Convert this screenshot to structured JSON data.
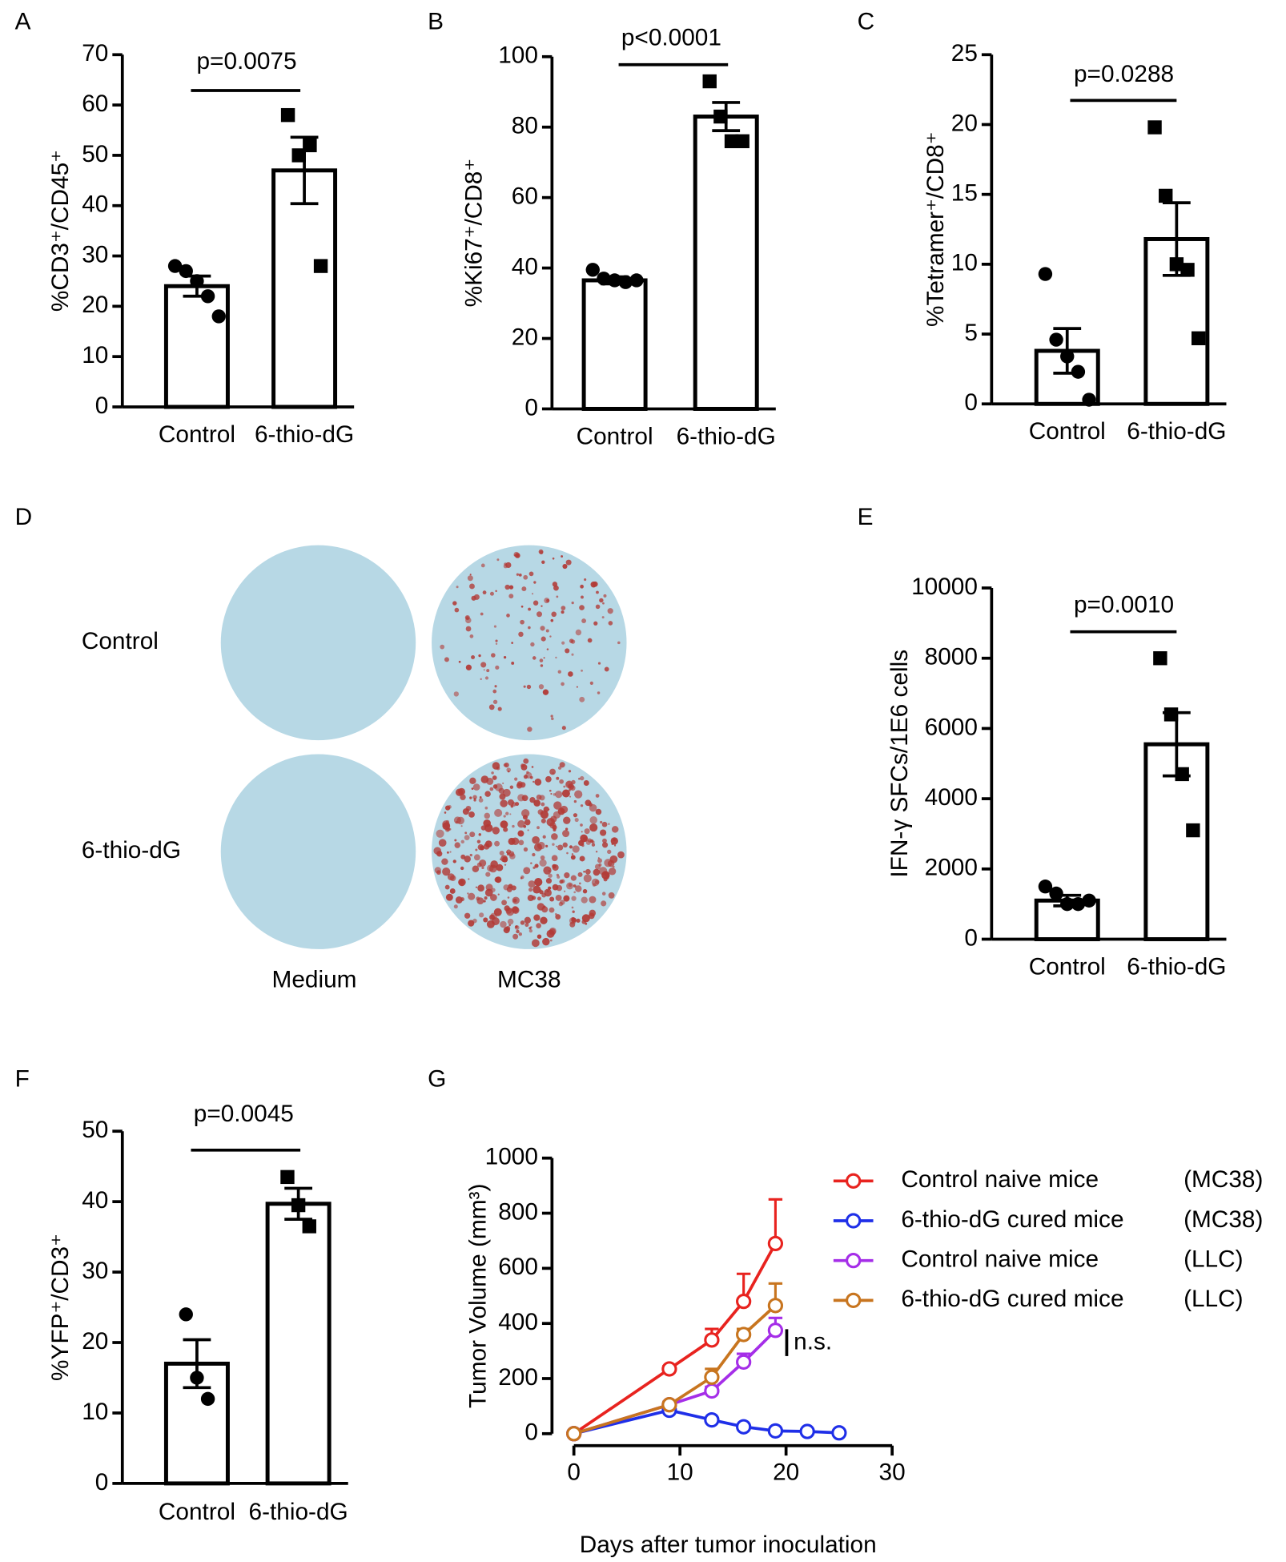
{
  "chart_data": [
    {
      "type": "bar",
      "panel_label": "A",
      "y_label": "%CD3⁺/CD45⁺",
      "categories": [
        "Control",
        "6-thio-dG"
      ],
      "values": [
        24,
        47
      ],
      "errors": [
        2,
        6.6
      ],
      "points": [
        [
          28,
          27,
          25,
          22,
          18
        ],
        [
          58,
          50,
          52,
          28
        ]
      ],
      "p_value": "p=0.0075",
      "ylim": [
        0,
        70
      ],
      "yticks": [
        0,
        10,
        20,
        30,
        40,
        50,
        60,
        70
      ]
    },
    {
      "type": "bar",
      "panel_label": "B",
      "y_label": "%Ki67⁺/CD8⁺",
      "categories": [
        "Control",
        "6-thio-dG"
      ],
      "values": [
        36.5,
        83
      ],
      "errors": [
        1,
        4
      ],
      "points": [
        [
          39.5,
          37,
          36.5,
          36,
          36.5
        ],
        [
          93,
          83,
          76,
          76
        ]
      ],
      "p_value": "p<0.0001",
      "ylim": [
        0,
        100
      ],
      "yticks": [
        0,
        20,
        40,
        60,
        80,
        100
      ]
    },
    {
      "type": "bar",
      "panel_label": "C",
      "y_label": "%Tetramer⁺/CD8⁺",
      "categories": [
        "Control",
        "6-thio-dG"
      ],
      "values": [
        3.8,
        11.8
      ],
      "errors": [
        1.6,
        2.6
      ],
      "points": [
        [
          9.3,
          4.6,
          3.4,
          2.3,
          0.3
        ],
        [
          19.8,
          14.9,
          10,
          9.6,
          4.7
        ]
      ],
      "p_value": "p=0.0288",
      "ylim": [
        0,
        25
      ],
      "yticks": [
        0,
        5,
        10,
        15,
        20,
        25
      ]
    },
    {
      "type": "image",
      "panel_label": "D",
      "row_labels": [
        "Control",
        "6-thio-dG"
      ],
      "column_labels": [
        "Medium",
        "MC38"
      ]
    },
    {
      "type": "bar",
      "panel_label": "E",
      "y_label": "IFN-γ SFCs/1E6 cells",
      "categories": [
        "Control",
        "6-thio-dG"
      ],
      "values": [
        1100,
        5550
      ],
      "errors": [
        150,
        900
      ],
      "points": [
        [
          1500,
          1300,
          1000,
          1000,
          1100
        ],
        [
          8000,
          6400,
          4700,
          3100
        ]
      ],
      "p_value": "p=0.0010",
      "ylim": [
        0,
        10000
      ],
      "yticks": [
        0,
        2000,
        4000,
        6000,
        8000,
        10000
      ]
    },
    {
      "type": "bar",
      "panel_label": "F",
      "y_label": "%YFP⁺/CD3⁺",
      "categories": [
        "Control",
        "6-thio-dG"
      ],
      "values": [
        17,
        39.7
      ],
      "errors": [
        3.4,
        2.2
      ],
      "points": [
        [
          24,
          15,
          12
        ],
        [
          43.5,
          39.5,
          36.5
        ]
      ],
      "p_value": "p=0.0045",
      "ylim": [
        0,
        50
      ],
      "yticks": [
        0,
        10,
        20,
        30,
        40,
        50
      ]
    },
    {
      "type": "line",
      "panel_label": "G",
      "x_label": "Days after tumor inoculation",
      "y_label": "Tumor Volume (mm³)",
      "annotation": "n.s.",
      "xlim": [
        0,
        30
      ],
      "xticks": [
        0,
        10,
        20,
        30
      ],
      "ylim": [
        0,
        1000
      ],
      "yticks": [
        0,
        200,
        400,
        600,
        800,
        1000
      ],
      "series": [
        {
          "name": "Control naive mice",
          "model": "(MC38)",
          "color": "#e8231f",
          "x": [
            0,
            9,
            13,
            16,
            19
          ],
          "y": [
            0,
            235,
            340,
            480,
            690
          ],
          "errors": [
            0,
            10,
            40,
            100,
            160
          ]
        },
        {
          "name": "6-thio-dG cured mice",
          "model": "(MC38)",
          "color": "#1f2fe8",
          "x": [
            0,
            9,
            13,
            16,
            19,
            22,
            25
          ],
          "y": [
            0,
            85,
            50,
            25,
            10,
            8,
            3
          ],
          "errors": [
            0,
            10,
            5,
            5,
            3,
            2,
            2
          ]
        },
        {
          "name": "Control naive mice",
          "model": "(LLC)",
          "color": "#a52ee8",
          "x": [
            0,
            9,
            13,
            16,
            19
          ],
          "y": [
            0,
            105,
            155,
            260,
            375
          ],
          "errors": [
            0,
            10,
            15,
            30,
            45
          ]
        },
        {
          "name": "6-thio-dG cured mice",
          "model": "(LLC)",
          "color": "#c8751f",
          "x": [
            0,
            9,
            13,
            16,
            19
          ],
          "y": [
            0,
            105,
            205,
            360,
            465
          ],
          "errors": [
            0,
            10,
            30,
            20,
            80
          ]
        }
      ]
    }
  ]
}
